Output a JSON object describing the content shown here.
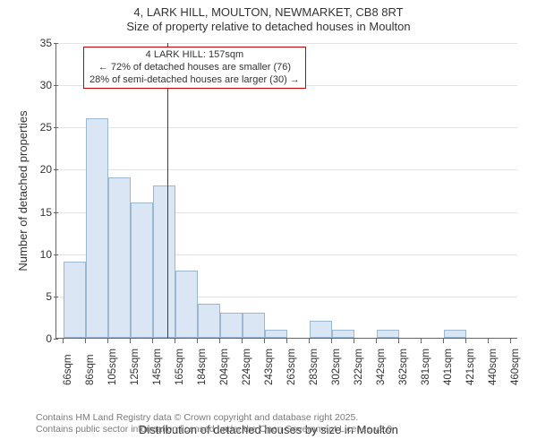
{
  "title": {
    "line1": "4, LARK HILL, MOULTON, NEWMARKET, CB8 8RT",
    "line2": "Size of property relative to detached houses in Moulton"
  },
  "chart": {
    "type": "histogram",
    "y_axis": {
      "label": "Number of detached properties",
      "min": 0,
      "max": 35,
      "tick_step": 5,
      "ticks": [
        0,
        5,
        10,
        15,
        20,
        25,
        30,
        35
      ]
    },
    "x_axis": {
      "label": "Distribution of detached houses by size in Moulton",
      "tick_labels": [
        "66sqm",
        "86sqm",
        "105sqm",
        "125sqm",
        "145sqm",
        "165sqm",
        "184sqm",
        "204sqm",
        "224sqm",
        "243sqm",
        "263sqm",
        "283sqm",
        "302sqm",
        "322sqm",
        "342sqm",
        "362sqm",
        "381sqm",
        "401sqm",
        "421sqm",
        "440sqm",
        "460sqm"
      ]
    },
    "bars": {
      "values": [
        9,
        26,
        19,
        16,
        18,
        8,
        4,
        3,
        3,
        1,
        0,
        2,
        1,
        0,
        1,
        0,
        0,
        1,
        0,
        0
      ],
      "fill": "#dbe6f4",
      "stroke": "#9bb8d3"
    },
    "marker": {
      "bin_edge_index": 5,
      "color": "#cc0000"
    },
    "annotation": {
      "line1": "4 LARK HILL: 157sqm",
      "line2": "← 72% of detached houses are smaller (76)",
      "line3": "28% of semi-detached houses are larger (30) →",
      "border_color": "#cc0000"
    },
    "colors": {
      "background": "#ffffff",
      "axis": "#666666",
      "grid": "#666666",
      "text": "#333333"
    },
    "font": {
      "family": "Arial",
      "title_size_pt": 10,
      "axis_label_size_pt": 10,
      "tick_size_pt": 9,
      "anno_size_pt": 8.5
    }
  },
  "footer": {
    "line1": "Contains HM Land Registry data © Crown copyright and database right 2025.",
    "line2": "Contains public sector information licensed under the Open Government Licence v3.0."
  }
}
